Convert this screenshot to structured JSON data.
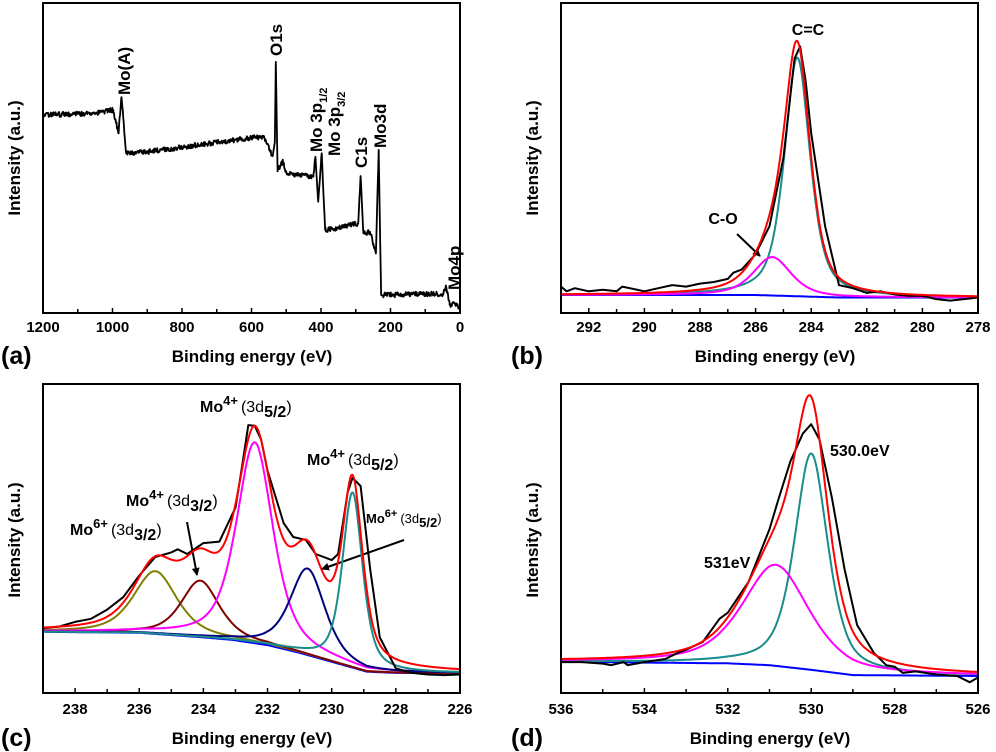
{
  "chart_data": [
    {
      "panel": "(a)",
      "type": "line",
      "xlabel": "Binding energy (eV)",
      "ylabel": "Intensity (a.u.)",
      "xlim": [
        1200,
        0
      ],
      "ylim": [
        0,
        100
      ],
      "x_reversed": true,
      "y_ticks_shown": false,
      "grid": false,
      "xticks": [
        "1200",
        "1000",
        "800",
        "600",
        "400",
        "200",
        "0"
      ],
      "xtick_values": [
        1200,
        1000,
        800,
        600,
        400,
        200,
        0
      ],
      "minor_xtick_values": [
        1100,
        900,
        700,
        500,
        300,
        100
      ],
      "series": [
        {
          "role": "measured",
          "color": "#000000",
          "points": [
            [
              1200,
              63.9
            ],
            [
              1100,
              64.2
            ],
            [
              1050,
              64.5
            ],
            [
              998,
              65.5
            ],
            [
              983,
              58
            ],
            [
              974,
              69.6
            ],
            [
              961,
              51.5
            ],
            [
              900,
              52
            ],
            [
              800,
              53.5
            ],
            [
              700,
              55
            ],
            [
              600,
              56.5
            ],
            [
              566,
              56.9
            ],
            [
              539,
              50.6
            ],
            [
              533,
              55
            ],
            [
              530,
              81
            ],
            [
              525,
              46
            ],
            [
              510,
              48.8
            ],
            [
              499,
              45
            ],
            [
              460,
              44.5
            ],
            [
              422,
              44
            ],
            [
              416,
              50.4
            ],
            [
              408,
              35.9
            ],
            [
              398,
              51.5
            ],
            [
              388,
              26.8
            ],
            [
              350,
              27.5
            ],
            [
              293,
              28.9
            ],
            [
              286,
              44.2
            ],
            [
              278,
              25.7
            ],
            [
              259,
              26.2
            ],
            [
              242,
              19.2
            ],
            [
              234,
              52.6
            ],
            [
              227,
              5.8
            ],
            [
              150,
              6
            ],
            [
              67,
              6.2
            ],
            [
              50,
              6
            ],
            [
              40,
              8.3
            ],
            [
              30,
              2.6
            ],
            [
              15,
              3.2
            ],
            [
              3,
              1.6
            ],
            [
              0,
              2
            ]
          ]
        }
      ],
      "annotations": {
        "mo_a": "Mo(A)",
        "o1s": "O1s",
        "mo3p12": {
          "base": "Mo 3p",
          "sub": "1/2"
        },
        "mo3p32": {
          "base": "Mo 3p",
          "sub": "3/2"
        },
        "c1s": "C1s",
        "mo3d": "Mo3d",
        "mo4p": "Mo4p"
      }
    },
    {
      "panel": "(b)",
      "type": "line",
      "xlabel": "Binding energy (eV)",
      "ylabel": "Intensity (a.u.)",
      "xlim": [
        293,
        278
      ],
      "ylim": [
        0,
        100
      ],
      "x_reversed": true,
      "y_ticks_shown": false,
      "grid": false,
      "xticks": [
        "292",
        "290",
        "288",
        "286",
        "284",
        "282",
        "280",
        "278"
      ],
      "xtick_values": [
        292,
        290,
        288,
        286,
        284,
        282,
        280,
        278
      ],
      "minor_xtick_values": [
        291,
        289,
        287,
        285,
        283,
        281,
        279
      ],
      "series": [
        {
          "role": "measured",
          "color": "#000000",
          "points": [
            [
              293,
              8.5
            ],
            [
              292.8,
              7
            ],
            [
              292.5,
              8
            ],
            [
              292,
              7
            ],
            [
              291.5,
              7.5
            ],
            [
              291,
              7
            ],
            [
              290.8,
              8.5
            ],
            [
              290,
              7
            ],
            [
              289.5,
              8
            ],
            [
              289,
              9
            ],
            [
              288.5,
              8.5
            ],
            [
              288,
              9.5
            ],
            [
              287.5,
              10
            ],
            [
              287,
              11
            ],
            [
              286.8,
              13
            ],
            [
              286.5,
              14
            ],
            [
              286,
              19
            ],
            [
              285.5,
              28
            ],
            [
              285,
              50
            ],
            [
              284.6,
              82
            ],
            [
              284.4,
              86
            ],
            [
              284.2,
              75
            ],
            [
              284,
              58
            ],
            [
              283.5,
              28
            ],
            [
              283,
              9
            ],
            [
              282.5,
              8
            ],
            [
              282,
              6.5
            ],
            [
              281.5,
              7
            ],
            [
              281,
              6
            ],
            [
              280.5,
              5.5
            ],
            [
              280,
              5.5
            ],
            [
              279.5,
              4.5
            ],
            [
              279,
              4
            ],
            [
              278.5,
              4.5
            ],
            [
              278,
              5
            ]
          ]
        }
      ],
      "baseline": {
        "color": "#0000ff",
        "points": [
          [
            293,
            5.8
          ],
          [
            286,
            5.8
          ],
          [
            284.5,
            5.4
          ],
          [
            283,
            5
          ],
          [
            278,
            5
          ]
        ]
      },
      "components": [
        {
          "color": "#1a8c8c",
          "center": 284.5,
          "height": 77,
          "fwhm": 1.1
        },
        {
          "color": "#ff00ff",
          "center": 285.4,
          "height": 12.4,
          "fwhm": 1.6
        }
      ],
      "envelope_color": "#ff0000",
      "annotations": {
        "cc": "C=C",
        "co": "C-O"
      }
    },
    {
      "panel": "(c)",
      "type": "line",
      "xlabel": "Binding energy (eV)",
      "ylabel": "Intensity (a.u.)",
      "xlim": [
        239,
        226
      ],
      "ylim": [
        0,
        100
      ],
      "x_reversed": true,
      "y_ticks_shown": false,
      "grid": false,
      "xticks": [
        "238",
        "236",
        "234",
        "232",
        "230",
        "228",
        "226"
      ],
      "xtick_values": [
        238,
        236,
        234,
        232,
        230,
        228,
        226
      ],
      "minor_xtick_values": [
        237,
        235,
        233,
        231,
        229,
        227
      ],
      "series": [
        {
          "role": "measured",
          "color": "#000000",
          "points": [
            [
              239,
              21
            ],
            [
              238.5,
              21.5
            ],
            [
              238,
              23
            ],
            [
              237.5,
              24
            ],
            [
              237,
              27
            ],
            [
              236.5,
              31
            ],
            [
              236,
              38
            ],
            [
              235.5,
              44
            ],
            [
              235,
              45.5
            ],
            [
              234.8,
              46.5
            ],
            [
              234.5,
              45
            ],
            [
              234,
              48.5
            ],
            [
              233.5,
              49
            ],
            [
              233,
              60
            ],
            [
              232.8,
              73
            ],
            [
              232.6,
              86.7
            ],
            [
              232.4,
              86.5
            ],
            [
              232.2,
              82
            ],
            [
              232,
              72
            ],
            [
              231.5,
              55
            ],
            [
              231.2,
              50.5
            ],
            [
              230.8,
              49.5
            ],
            [
              230.5,
              45
            ],
            [
              230,
              43
            ],
            [
              229.8,
              45
            ],
            [
              229.5,
              65
            ],
            [
              229.35,
              69.6
            ],
            [
              229.1,
              67
            ],
            [
              228.8,
              40
            ],
            [
              228.5,
              18
            ],
            [
              228,
              8
            ],
            [
              227.5,
              6.5
            ],
            [
              227,
              6
            ],
            [
              226.5,
              5.8
            ],
            [
              226,
              6
            ]
          ]
        }
      ],
      "baseline": {
        "color": "#0000ff",
        "points": [
          [
            239,
            19.8
          ],
          [
            236,
            19.5
          ],
          [
            234,
            18
          ],
          [
            233.1,
            17.2
          ],
          [
            232,
            15.5
          ],
          [
            231,
            13
          ],
          [
            230,
            10.1
          ],
          [
            228.9,
            6.9
          ],
          [
            228,
            6.5
          ],
          [
            226,
            6.4
          ]
        ]
      },
      "components": [
        {
          "color": "#808000",
          "center": 235.5,
          "height": 20.3,
          "fwhm": 1.6
        },
        {
          "color": "#800000",
          "center": 234.1,
          "height": 18.3,
          "fwhm": 1.4
        },
        {
          "color": "#ff00ff",
          "center": 232.4,
          "height": 65,
          "fwhm": 1.35
        },
        {
          "color": "#000080",
          "center": 230.75,
          "height": 28,
          "fwhm": 1.3
        },
        {
          "color": "#1a8c8c",
          "center": 229.35,
          "height": 56.7,
          "fwhm": 0.75
        }
      ],
      "envelope_color": "#ff0000",
      "annotations": {
        "mo4_top": {
          "base": "Mo",
          "sup": "4+",
          "mid": "(3d",
          "sub": "5/2",
          "end": ")"
        },
        "mo4_right": {
          "base": "Mo",
          "sup": "4+",
          "mid": "(3d",
          "sub": "5/2",
          "end": ")"
        },
        "mo6_right": {
          "base": "Mo",
          "sup": "6+",
          "mid": "(3d",
          "sub": "5/2",
          "end": ")"
        },
        "mo4_left": {
          "base": "Mo",
          "sup": "4+",
          "mid": "(3d",
          "sub": "3/2",
          "end": ")"
        },
        "mo6_left": {
          "base": "Mo",
          "sup": "6+",
          "mid": "(3d",
          "sub": "3/2",
          "end": ")"
        }
      }
    },
    {
      "panel": "(d)",
      "type": "line",
      "xlabel": "Binding energy (eV)",
      "ylabel": "Intensity (a.u.)",
      "xlim": [
        536,
        526
      ],
      "ylim": [
        0,
        100
      ],
      "x_reversed": true,
      "y_ticks_shown": false,
      "grid": false,
      "xticks": [
        "536",
        "534",
        "532",
        "530",
        "528",
        "526"
      ],
      "xtick_values": [
        536,
        534,
        532,
        530,
        528,
        526
      ],
      "minor_xtick_values": [
        535,
        533,
        531,
        529,
        527
      ],
      "series": [
        {
          "role": "measured",
          "color": "#000000",
          "points": [
            [
              536,
              10
            ],
            [
              535.5,
              10
            ],
            [
              535,
              9.5
            ],
            [
              534.8,
              9
            ],
            [
              534.5,
              10
            ],
            [
              534.4,
              9
            ],
            [
              534,
              10
            ],
            [
              533.5,
              11
            ],
            [
              533.2,
              13
            ],
            [
              533,
              14
            ],
            [
              532.6,
              16.5
            ],
            [
              532.2,
              24
            ],
            [
              532,
              26
            ],
            [
              531.5,
              36
            ],
            [
              531,
              53
            ],
            [
              530.8,
              62
            ],
            [
              530.5,
              75
            ],
            [
              530.2,
              84
            ],
            [
              530,
              87
            ],
            [
              529.8,
              82
            ],
            [
              529.5,
              63
            ],
            [
              529.2,
              40
            ],
            [
              528.9,
              22
            ],
            [
              528.5,
              13
            ],
            [
              528.2,
              9
            ],
            [
              528,
              8.5
            ],
            [
              527.8,
              6.5
            ],
            [
              527.5,
              7
            ],
            [
              527,
              6
            ],
            [
              526.5,
              5.5
            ],
            [
              526.2,
              3.5
            ],
            [
              526,
              5
            ]
          ]
        }
      ],
      "baseline": {
        "color": "#0000ff",
        "points": [
          [
            536,
            10.1
          ],
          [
            532,
            9.6
          ],
          [
            531,
            9
          ],
          [
            530,
            7.5
          ],
          [
            529,
            5.8
          ],
          [
            526,
            5.5
          ]
        ]
      },
      "components": [
        {
          "color": "#1a8c8c",
          "center": 530.0,
          "height": 70,
          "fwhm": 0.95
        },
        {
          "color": "#ff00ff",
          "center": 530.85,
          "height": 32.7,
          "fwhm": 1.9
        }
      ],
      "envelope_color": "#ff0000",
      "annotations": {
        "p530": "530.0eV",
        "p531": "531eV"
      }
    }
  ]
}
